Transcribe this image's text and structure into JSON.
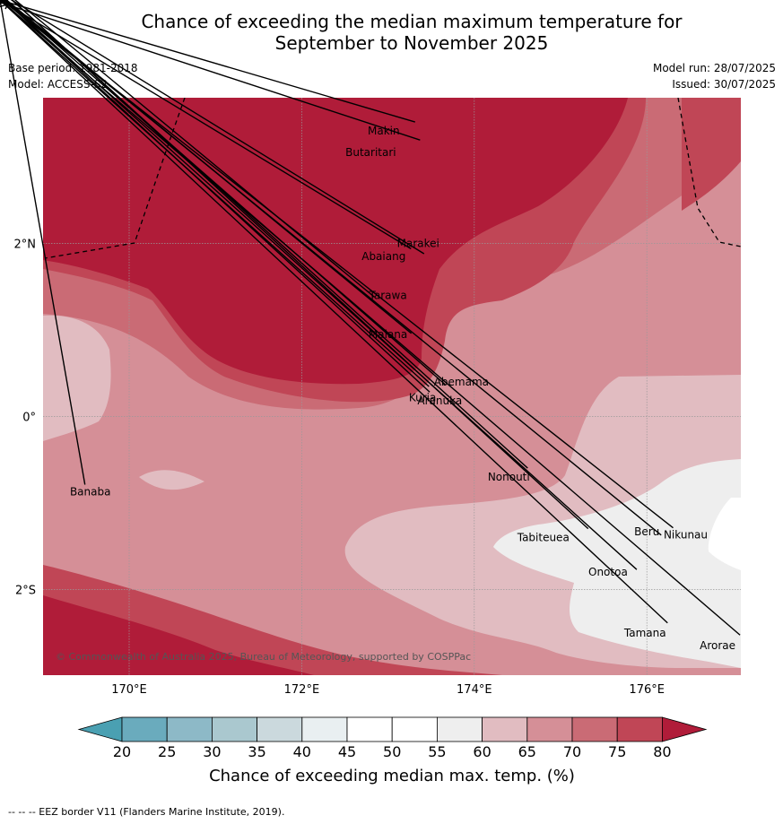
{
  "title": {
    "line1": "Chance of exceeding the median maximum temperature for",
    "line2": "September to November 2025"
  },
  "meta": {
    "base_period": "Base period: 1981-2018",
    "model": "Model: ACCESS-S2",
    "model_run": "Model run: 28/07/2025",
    "issued": "Issued: 30/07/2025"
  },
  "map": {
    "lat_labels": [
      "2°N",
      "0°",
      "2°S"
    ],
    "lon_labels": [
      "170°E",
      "172°E",
      "174°E",
      "176°E"
    ],
    "places": [
      {
        "name": "Makin",
        "lon": 172.95,
        "lat": 3.3
      },
      {
        "name": "Butaritari",
        "lon": 172.8,
        "lat": 3.05
      },
      {
        "name": "Marakei",
        "lon": 173.35,
        "lat": 2.0
      },
      {
        "name": "Abaiang",
        "lon": 172.95,
        "lat": 1.85
      },
      {
        "name": "Tarawa",
        "lon": 173.0,
        "lat": 1.4
      },
      {
        "name": "Maiana",
        "lon": 173.0,
        "lat": 0.95
      },
      {
        "name": "Abemama",
        "lon": 173.85,
        "lat": 0.4
      },
      {
        "name": "Kuria",
        "lon": 173.4,
        "lat": 0.22
      },
      {
        "name": "Aranuka",
        "lon": 173.6,
        "lat": 0.18
      },
      {
        "name": "Nonouti",
        "lon": 174.4,
        "lat": -0.7
      },
      {
        "name": "Banaba",
        "lon": 169.55,
        "lat": -0.87
      },
      {
        "name": "Tabiteuea",
        "lon": 174.8,
        "lat": -1.4
      },
      {
        "name": "Beru",
        "lon": 176.0,
        "lat": -1.33
      },
      {
        "name": "Nikunau",
        "lon": 176.45,
        "lat": -1.37
      },
      {
        "name": "Onotoa",
        "lon": 175.55,
        "lat": -1.8
      },
      {
        "name": "Tamana",
        "lon": 175.98,
        "lat": -2.5
      },
      {
        "name": "Arorae",
        "lon": 176.82,
        "lat": -2.65
      }
    ],
    "copyright": "© Commonwealth of Australia 2025, Bureau of Meteorology, supported by COSPPac"
  },
  "colorbar": {
    "ticks": [
      "20",
      "25",
      "30",
      "35",
      "40",
      "45",
      "50",
      "55",
      "60",
      "65",
      "70",
      "75",
      "80"
    ],
    "colors": [
      "#6aabbd",
      "#8db9c7",
      "#aac8cf",
      "#cbd9dd",
      "#e9eff1",
      "#ffffff",
      "#ffffff",
      "#eeeeee",
      "#e1bcc1",
      "#d58f97",
      "#ca6b75",
      "#c04656"
    ],
    "low_color": "#4aa0b2",
    "high_color": "#b01c39",
    "label": "Chance of exceeding median max. temp. (%)"
  },
  "footer": "-- -- -- EEZ border V11 (Flanders Marine Institute, 2019)."
}
